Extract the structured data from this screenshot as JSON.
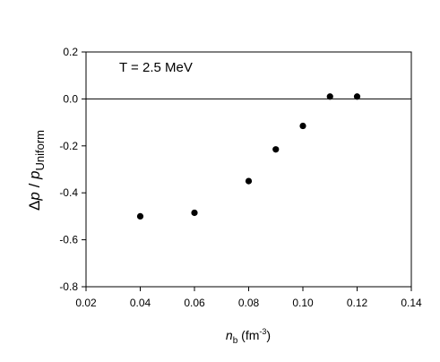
{
  "chart_data": {
    "type": "scatter",
    "title": "",
    "annotation": "T = 2.5 MeV",
    "xlabel": {
      "symbol": "n",
      "subscript": "b",
      "unit": " (fm",
      "unit_sup": "-3",
      "unit_close": ")"
    },
    "ylabel": {
      "prefix": "Δ",
      "symbol": "p",
      "slash": " / ",
      "symbol2": "p",
      "subscript": "Uniform"
    },
    "xlim": [
      0.02,
      0.14
    ],
    "ylim": [
      -0.8,
      0.2
    ],
    "xticks": [
      "0.02",
      "0.04",
      "0.06",
      "0.08",
      "0.10",
      "0.12",
      "0.14"
    ],
    "yticks": [
      "0.2",
      "0.0",
      "-0.2",
      "-0.4",
      "-0.6",
      "-0.8"
    ],
    "reference_line_y": 0.0,
    "grid": false,
    "points": [
      {
        "x": 0.04,
        "y": -0.5
      },
      {
        "x": 0.06,
        "y": -0.485
      },
      {
        "x": 0.08,
        "y": -0.35
      },
      {
        "x": 0.09,
        "y": -0.215
      },
      {
        "x": 0.1,
        "y": -0.115
      },
      {
        "x": 0.11,
        "y": 0.01
      },
      {
        "x": 0.12,
        "y": 0.01
      }
    ]
  }
}
